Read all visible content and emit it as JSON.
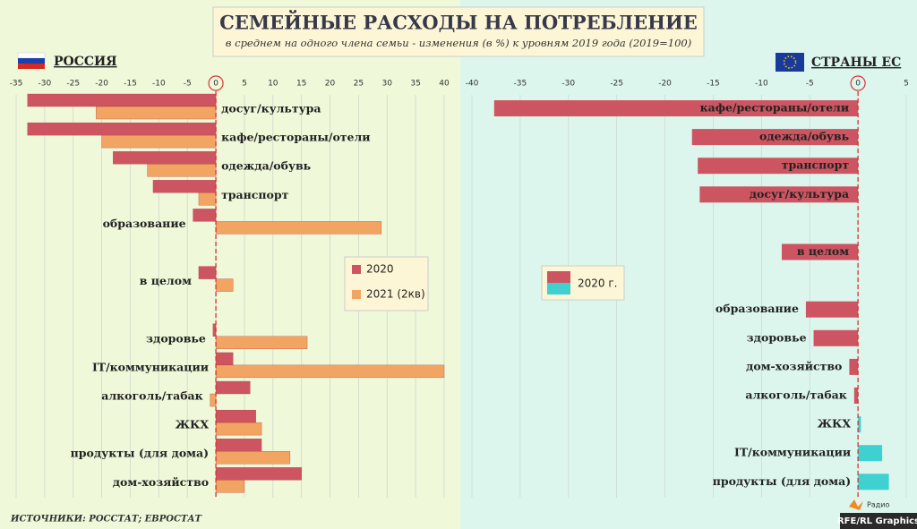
{
  "header": {
    "title": "СЕМЕЙНЫЕ РАСХОДЫ НА ПОТРЕБЛЕНИЕ",
    "subtitle": "в среднем на одного члена семьи - изменения (в %) к уровням 2019 года (2019=100)"
  },
  "footer": {
    "source": "ИСТОЧНИКИ: РОССТАТ; ЕВРОСТАТ",
    "credit": "RFE/RL Graphics",
    "logo": "Радио"
  },
  "chart_data": [
    {
      "type": "hbar",
      "title": "РОССИЯ",
      "categories": [
        "досуг/культура",
        "кафе/рестораны/отели",
        "одежда/обувь",
        "транспорт",
        "образование",
        null,
        "в целом",
        null,
        "здоровье",
        "IT/коммуникации",
        "алкоголь/табак",
        "ЖКХ",
        "продукты (для дома)",
        "дом-хозяйство"
      ],
      "series": [
        {
          "name": "2020",
          "color": "#cd5561",
          "values": [
            -33,
            -33,
            -18,
            -11,
            -4,
            null,
            -3,
            null,
            -0.5,
            3,
            6,
            7,
            8,
            15
          ]
        },
        {
          "name": "2021 (2кв)",
          "color": "#f2a463",
          "values": [
            -21,
            -20,
            -12,
            -3,
            29,
            null,
            3,
            null,
            16,
            40,
            -1,
            8,
            13,
            5
          ]
        }
      ],
      "xlim": [
        -35,
        40
      ],
      "xticks": [
        -35,
        -30,
        -25,
        -20,
        -15,
        -10,
        -5,
        0,
        5,
        10,
        15,
        20,
        25,
        30,
        35,
        40
      ],
      "grid": true
    },
    {
      "type": "hbar",
      "title": "СТРАНЫ ЕС",
      "categories": [
        "кафе/рестораны/отели",
        "одежда/обувь",
        "транспорт",
        "досуг/культура",
        null,
        "в целом",
        null,
        "образование",
        "здоровье",
        "дом-хозяйство",
        "алкоголь/табак",
        "ЖКХ",
        "IT/коммуникации",
        "продукты (для дома)"
      ],
      "series": [
        {
          "name": "2020 г.",
          "color": "#cd5561",
          "positive_color": "#3fd1cf",
          "values": [
            -37.7,
            -17.2,
            -16.6,
            -16.4,
            null,
            -7.9,
            null,
            -5.4,
            -4.6,
            -0.9,
            -0.4,
            0.3,
            2.5,
            3.2
          ]
        }
      ],
      "xlim": [
        -40,
        5
      ],
      "xticks": [
        -40,
        -35,
        -30,
        -25,
        -20,
        -15,
        -10,
        -5,
        0,
        5
      ],
      "grid": true
    }
  ]
}
